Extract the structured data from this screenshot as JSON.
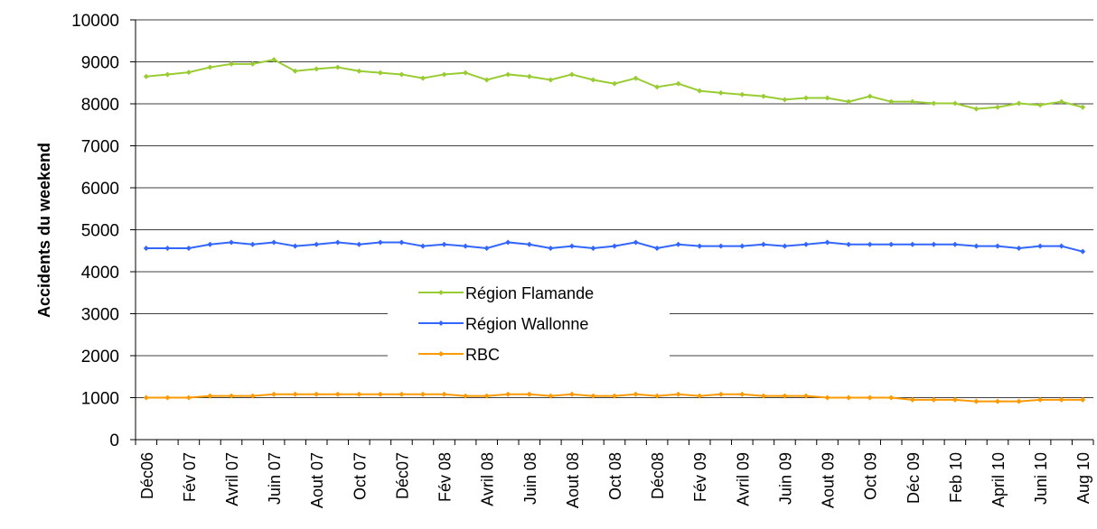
{
  "chart_data": {
    "type": "line",
    "y_label": "Accidents du weekend",
    "categories": [
      "Déc06",
      null,
      "Fév 07",
      null,
      "Avril 07",
      null,
      "Juin 07",
      null,
      "Aout 07",
      null,
      "Oct 07",
      null,
      "Déc07",
      null,
      "Fév 08",
      null,
      "Avril 08",
      null,
      "Juin 08",
      null,
      "Aout 08",
      null,
      "Oct 08",
      null,
      "Déc08",
      null,
      "Fév 09",
      null,
      "Avril 09",
      null,
      "Juin 09",
      null,
      "Aout 09",
      null,
      "Oct 09",
      null,
      "Déc 09",
      null,
      "Feb 10",
      null,
      "April 10",
      null,
      "Juni 10",
      null,
      "Aug 10"
    ],
    "series": [
      {
        "name": "Région Flamande",
        "color": "#99cc33",
        "values": [
          8650,
          8700,
          8750,
          8870,
          8950,
          8950,
          9050,
          8780,
          8830,
          8870,
          8780,
          8740,
          8700,
          8610,
          8700,
          8740,
          8570,
          8700,
          8650,
          8570,
          8700,
          8570,
          8480,
          8610,
          8400,
          8480,
          8310,
          8260,
          8220,
          8180,
          8100,
          8140,
          8140,
          8050,
          8180,
          8050,
          8050,
          8010,
          8010,
          7880,
          7920,
          8010,
          7970,
          8050,
          7920
        ]
      },
      {
        "name": "Région Wallonne",
        "color": "#3366ff",
        "values": [
          4560,
          4560,
          4560,
          4650,
          4700,
          4650,
          4700,
          4610,
          4650,
          4700,
          4650,
          4700,
          4700,
          4610,
          4650,
          4610,
          4560,
          4700,
          4650,
          4560,
          4610,
          4560,
          4610,
          4700,
          4560,
          4650,
          4610,
          4610,
          4610,
          4650,
          4610,
          4650,
          4700,
          4650,
          4650,
          4650,
          4650,
          4650,
          4650,
          4610,
          4610,
          4560,
          4610,
          4610,
          4480
        ]
      },
      {
        "name": "RBC",
        "color": "#ff9900",
        "values": [
          1000,
          1000,
          1000,
          1040,
          1040,
          1040,
          1080,
          1080,
          1080,
          1080,
          1080,
          1080,
          1080,
          1080,
          1080,
          1040,
          1040,
          1080,
          1080,
          1040,
          1080,
          1040,
          1040,
          1080,
          1040,
          1080,
          1040,
          1080,
          1080,
          1040,
          1040,
          1040,
          1000,
          1000,
          1000,
          1000,
          950,
          950,
          950,
          910,
          910,
          910,
          950,
          950,
          950
        ]
      }
    ],
    "ylim": [
      0,
      10000
    ],
    "yticks": [
      0,
      1000,
      2000,
      3000,
      4000,
      5000,
      6000,
      7000,
      8000,
      9000,
      10000
    ],
    "grid": true,
    "legend": "center"
  }
}
